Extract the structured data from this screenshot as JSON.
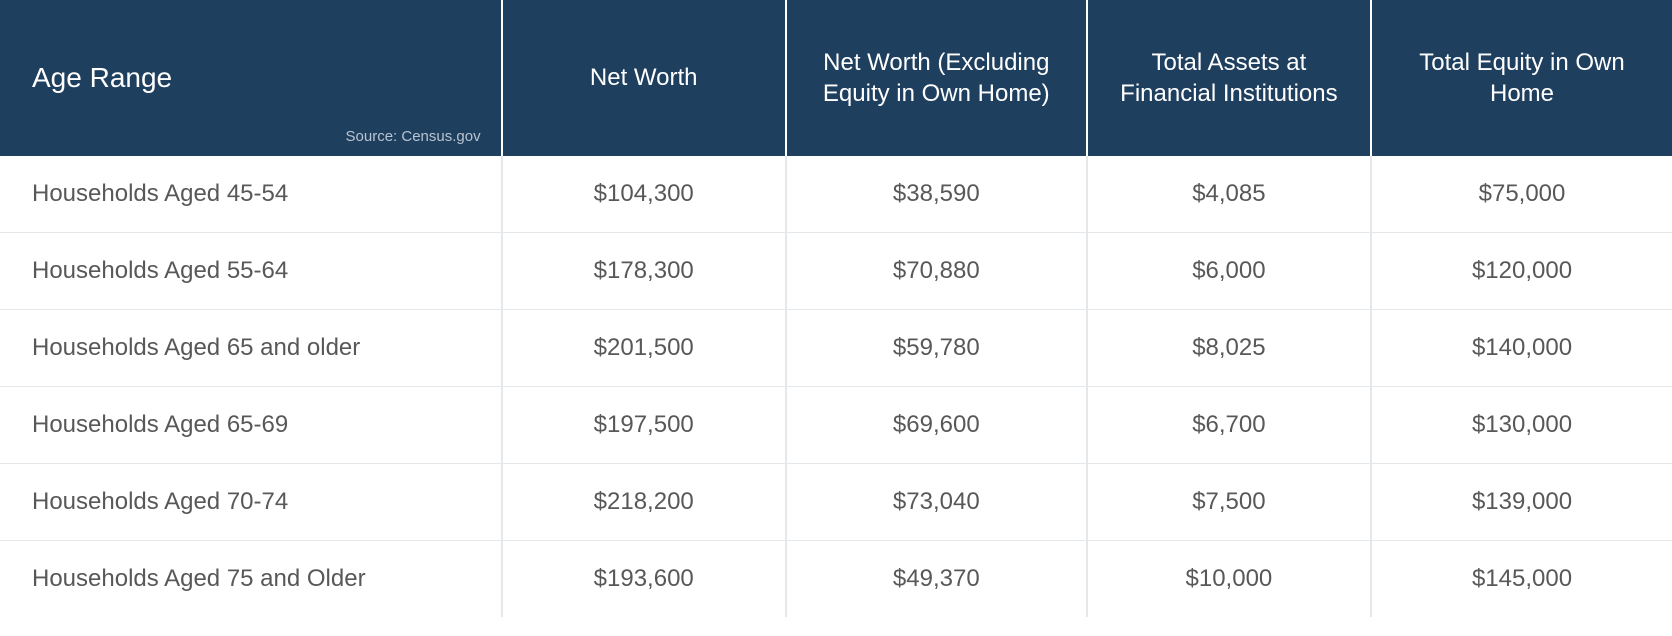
{
  "table": {
    "header_bg_color": "#1f3f5f",
    "header_text_color": "#ffffff",
    "body_text_color": "#58585a",
    "border_color": "#e5e8eb",
    "source_text": "Source: Census.gov",
    "columns": [
      {
        "label": "Age Range",
        "width_pct": 30,
        "align": "left"
      },
      {
        "label": "Net Worth",
        "width_pct": 17,
        "align": "center"
      },
      {
        "label": "Net Worth (Excluding Equity in Own Home)",
        "width_pct": 18,
        "align": "center"
      },
      {
        "label": "Total Assets at Financial Institutions",
        "width_pct": 17,
        "align": "center"
      },
      {
        "label": "Total Equity in Own Home",
        "width_pct": 18,
        "align": "center"
      }
    ],
    "rows": [
      {
        "age_range": "Households Aged 45-54",
        "net_worth": "$104,300",
        "net_worth_ex_equity": "$38,590",
        "total_assets_fi": "$4,085",
        "total_equity_home": "$75,000"
      },
      {
        "age_range": "Households Aged 55-64",
        "net_worth": "$178,300",
        "net_worth_ex_equity": "$70,880",
        "total_assets_fi": "$6,000",
        "total_equity_home": "$120,000"
      },
      {
        "age_range": "Households Aged 65 and older",
        "net_worth": "$201,500",
        "net_worth_ex_equity": "$59,780",
        "total_assets_fi": "$8,025",
        "total_equity_home": "$140,000"
      },
      {
        "age_range": "Households Aged 65-69",
        "net_worth": "$197,500",
        "net_worth_ex_equity": "$69,600",
        "total_assets_fi": "$6,700",
        "total_equity_home": "$130,000"
      },
      {
        "age_range": "Households Aged 70-74",
        "net_worth": "$218,200",
        "net_worth_ex_equity": "$73,040",
        "total_assets_fi": "$7,500",
        "total_equity_home": "$139,000"
      },
      {
        "age_range": "Households Aged 75 and Older",
        "net_worth": "$193,600",
        "net_worth_ex_equity": "$49,370",
        "total_assets_fi": "$10,000",
        "total_equity_home": "$145,000"
      }
    ]
  }
}
